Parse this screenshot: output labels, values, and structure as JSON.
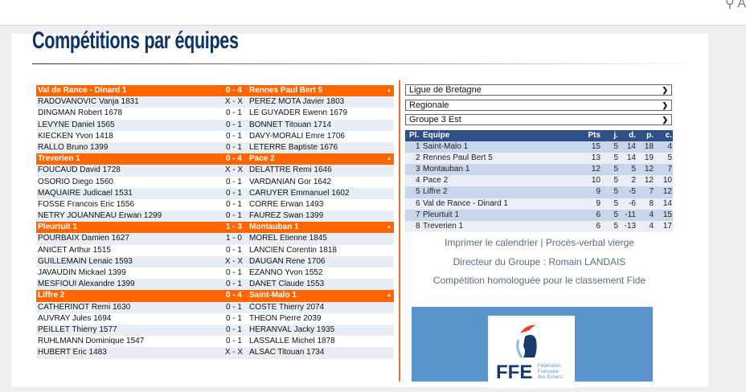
{
  "page": {
    "title": "Compétitions par équipes"
  },
  "topbar": {
    "icon": "search-icon",
    "cut_text": "A"
  },
  "matches": [
    {
      "home": "Val de Rance - Dinard 1",
      "score": "0 - 4",
      "away": "Rennes Paul Bert 5",
      "games": [
        [
          "RADOVANOVIC Vanja 1831",
          "X - X",
          "PEREZ MOTA Javier 1803"
        ],
        [
          "DINGMAN Robert 1678",
          "0 - 1",
          "LE GUYADER Ewenn 1679"
        ],
        [
          "LEVYNE Daniel 1565",
          "0 - 1",
          "BONNET Titouan 1714"
        ],
        [
          "KIECKEN Yvon 1418",
          "0 - 1",
          "DAVY-MORALI Emre 1706"
        ],
        [
          "RALLO Bruno 1399",
          "0 - 1",
          "LETERRE Baptiste 1676"
        ]
      ]
    },
    {
      "home": "Treverien 1",
      "score": "0 - 4",
      "away": "Pace 2",
      "games": [
        [
          "FOUCAUD David 1728",
          "X - X",
          "DELATTRE Remi 1646"
        ],
        [
          "OSORIO Diego 1560",
          "0 - 1",
          "VARDANIAN Gor 1642"
        ],
        [
          "MAQUAIRE Judicael 1531",
          "0 - 1",
          "CARUYER Emmanuel 1602"
        ],
        [
          "FOSSE Francois Eric 1556",
          "0 - 1",
          "CORRE Erwan 1493"
        ],
        [
          "NETRY JOUANNEAU Erwan 1299",
          "0 - 1",
          "FAUREZ Swan 1399"
        ]
      ]
    },
    {
      "home": "Pleurtuit 1",
      "score": "1 - 3",
      "away": "Montauban 1",
      "games": [
        [
          "POURBAIX Damien 1627",
          "1 - 0",
          "MOREL Etienne 1845"
        ],
        [
          "ANICET Arthur 1515",
          "0 - 1",
          "LANCIEN Corentin 1818"
        ],
        [
          "GUILLEMAIN Lenaic 1593",
          "X - X",
          "DAUGAN Rene 1706"
        ],
        [
          "JAVAUDIN Mickael 1399",
          "0 - 1",
          "EZANNO Yvon 1552"
        ],
        [
          "MESFIOUI Alexandre 1399",
          "0 - 1",
          "DANET Claude 1553"
        ]
      ]
    },
    {
      "home": "Liffre 2",
      "score": "0 - 4",
      "away": "Saint-Malo 1",
      "games": [
        [
          "CATHERINOT Remi 1630",
          "0 - 1",
          "COSTE Thierry 2074"
        ],
        [
          "AUVRAY Jules 1694",
          "0 - 1",
          "THEON Pierre 2039"
        ],
        [
          "PEILLET Thierry 1577",
          "0 - 1",
          "HERANVAL Jacky 1935"
        ],
        [
          "RUHLMANN Dominique 1547",
          "0 - 1",
          "LASSALLE Michel 1878"
        ],
        [
          "HUBERT Eric 1483",
          "X - X",
          "ALSAC Titouan 1734"
        ]
      ]
    }
  ],
  "selects": [
    "Ligue de Bretagne",
    "Regionale",
    "Groupe 3 Est"
  ],
  "standings": {
    "headers": [
      "Pl.",
      "Equipe",
      "Pts",
      "j.",
      "d.",
      "p.",
      "c."
    ],
    "rows": [
      [
        "1",
        "Saint-Malo 1",
        "15",
        "5",
        "14",
        "18",
        "4"
      ],
      [
        "2",
        "Rennes Paul Bert 5",
        "13",
        "5",
        "14",
        "19",
        "5"
      ],
      [
        "3",
        "Montauban 1",
        "12",
        "5",
        "5",
        "12",
        "7"
      ],
      [
        "4",
        "Pace 2",
        "10",
        "5",
        "2",
        "12",
        "10"
      ],
      [
        "5",
        "Liffre 2",
        "9",
        "5",
        "-5",
        "7",
        "12"
      ],
      [
        "6",
        "Val de Rance - Dinard 1",
        "9",
        "5",
        "-6",
        "8",
        "14"
      ],
      [
        "7",
        "Pleurtuit 1",
        "6",
        "5",
        "-11",
        "4",
        "15"
      ],
      [
        "8",
        "Treverien 1",
        "6",
        "5",
        "-13",
        "4",
        "17"
      ]
    ]
  },
  "links": {
    "print": "Imprimer le calendrier",
    "sep": " | ",
    "pv": "Procès-verbal vierge"
  },
  "director": "Directeur du Groupe : Romain LANDAIS",
  "fide": "Compétition homologuée pour le classement Fide",
  "logo": {
    "text": "FFE",
    "sub": "Fédération Française des Echecs"
  },
  "colors": {
    "orange": "#ff6600",
    "navy": "#2f4f86",
    "title": "#0d3466"
  }
}
